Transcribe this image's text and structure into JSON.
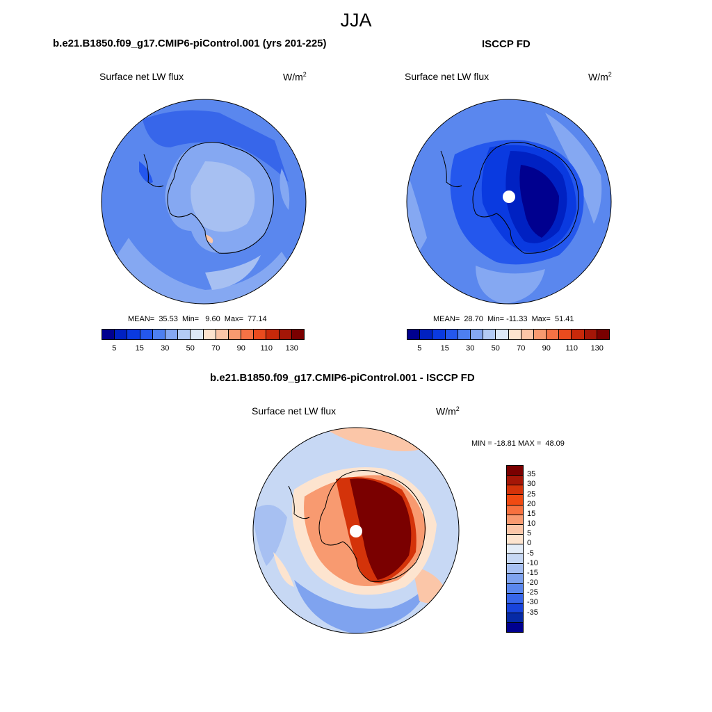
{
  "figure": {
    "season": "JJA"
  },
  "panels": {
    "model": {
      "title": "b.e21.B1850.f09_g17.CMIP6-piControl.001 (yrs 201-225)",
      "variable": "Surface net LW flux",
      "units": "W/m",
      "units_exp": "2",
      "stats": "MEAN=  35.53  Min=   9.60  Max=  77.14"
    },
    "obs": {
      "title": "ISCCP FD",
      "variable": "Surface net LW flux",
      "units": "W/m",
      "units_exp": "2",
      "stats": "MEAN=  28.70  Min= -11.33  Max=  51.41"
    },
    "diff": {
      "title": "b.e21.B1850.f09_g17.CMIP6-piControl.001 - ISCCP FD",
      "variable": "Surface net LW flux",
      "units": "W/m",
      "units_exp": "2",
      "stats": "MIN = -18.81 MAX =  48.09"
    }
  },
  "colorbars": {
    "abs": {
      "colors": [
        "#00008f",
        "#0021c2",
        "#0a3ae0",
        "#2457ed",
        "#4d7ff0",
        "#85a8f2",
        "#b3cbf5",
        "#dde9f7",
        "#fde4cf",
        "#fbc6a8",
        "#f89a70",
        "#f57245",
        "#ea4b1e",
        "#c8290a",
        "#a51607",
        "#7a0000"
      ],
      "tick_labels": [
        "5",
        "15",
        "30",
        "50",
        "70",
        "90",
        "110",
        "130"
      ]
    },
    "diff": {
      "colors": [
        "#7a0000",
        "#a51607",
        "#d4330a",
        "#f04a12",
        "#f7713f",
        "#f89a70",
        "#fbc6a8",
        "#fde4cf",
        "#e4edf8",
        "#c7d8f4",
        "#a7c0f2",
        "#7fa3ef",
        "#5a87ee",
        "#3766ea",
        "#1844dc",
        "#062aa6",
        "#00008f"
      ],
      "tick_labels": [
        "35",
        "30",
        "25",
        "20",
        "15",
        "10",
        "5",
        "0",
        "-5",
        "-10",
        "-15",
        "-20",
        "-25",
        "-30",
        "-35"
      ]
    }
  }
}
